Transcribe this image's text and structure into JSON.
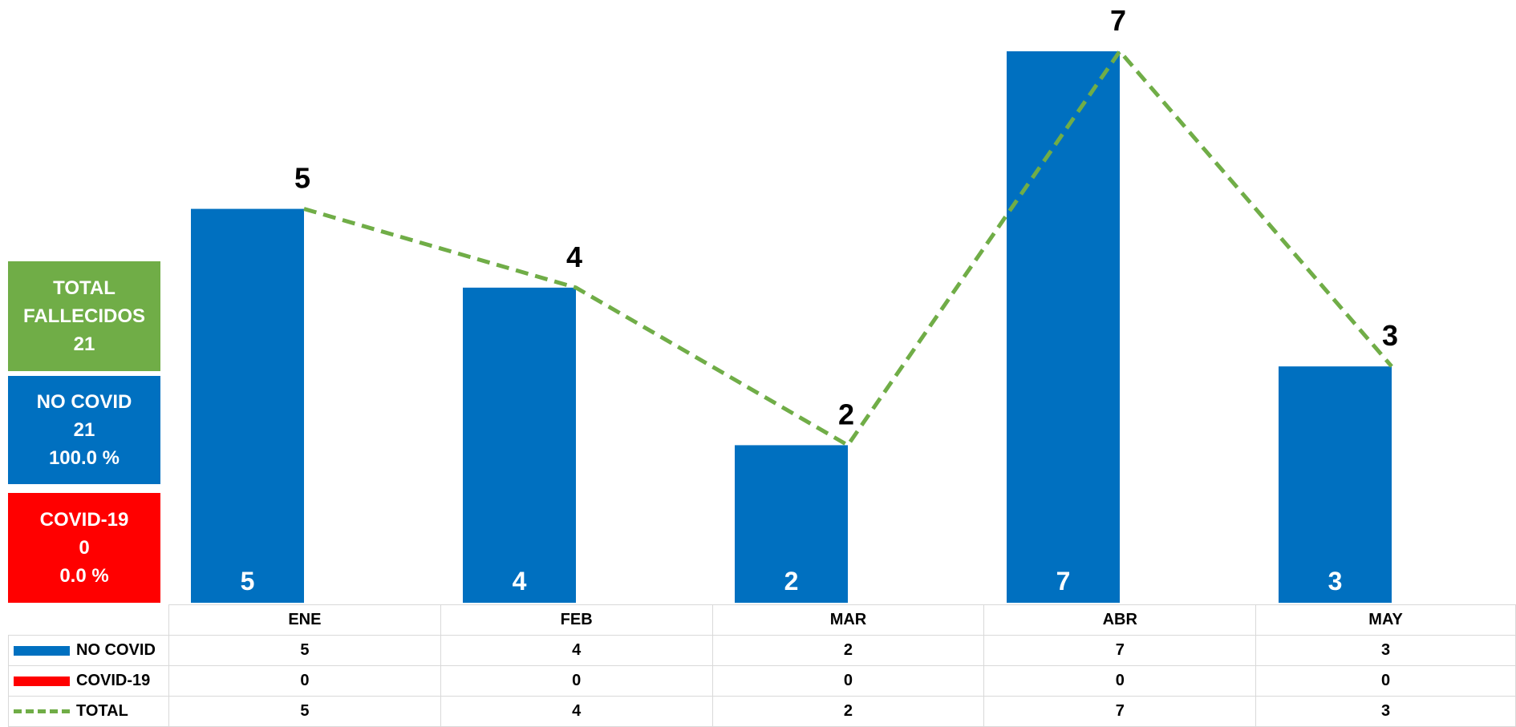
{
  "colors": {
    "no_covid": "#0070c0",
    "covid": "#ff0000",
    "total": "#70ad47"
  },
  "summary": {
    "total": {
      "line1": "TOTAL",
      "line2": "FALLECIDOS",
      "line3": "21",
      "color": "#70ad47"
    },
    "no_covid": {
      "line1": "NO COVID",
      "line2": "21",
      "line3": "100.0 %",
      "color": "#0070c0"
    },
    "covid": {
      "line1": "COVID-19",
      "line2": "0",
      "line3": "0.0 %",
      "color": "#ff0000"
    }
  },
  "chart_data": {
    "type": "bar",
    "categories": [
      "ENE",
      "FEB",
      "MAR",
      "ABR",
      "MAY"
    ],
    "series": [
      {
        "name": "NO COVID",
        "kind": "bar",
        "color": "#0070c0",
        "values": [
          5,
          4,
          2,
          7,
          3
        ]
      },
      {
        "name": "COVID-19",
        "kind": "bar",
        "color": "#ff0000",
        "values": [
          0,
          0,
          0,
          0,
          0
        ]
      },
      {
        "name": "TOTAL",
        "kind": "line-dashed",
        "color": "#70ad47",
        "values": [
          5,
          4,
          2,
          7,
          3
        ]
      }
    ],
    "ylim": [
      0,
      7
    ],
    "grid": false,
    "legend": "data-table"
  },
  "table": {
    "columns": [
      "ENE",
      "FEB",
      "MAR",
      "ABR",
      "MAY"
    ],
    "rows": [
      {
        "label": "NO COVID",
        "swatch": "solid",
        "color": "#0070c0",
        "values": [
          "5",
          "4",
          "2",
          "7",
          "3"
        ]
      },
      {
        "label": "COVID-19",
        "swatch": "solid",
        "color": "#ff0000",
        "values": [
          "0",
          "0",
          "0",
          "0",
          "0"
        ]
      },
      {
        "label": "TOTAL",
        "swatch": "dashed",
        "color": "#70ad47",
        "values": [
          "5",
          "4",
          "2",
          "7",
          "3"
        ]
      }
    ]
  }
}
